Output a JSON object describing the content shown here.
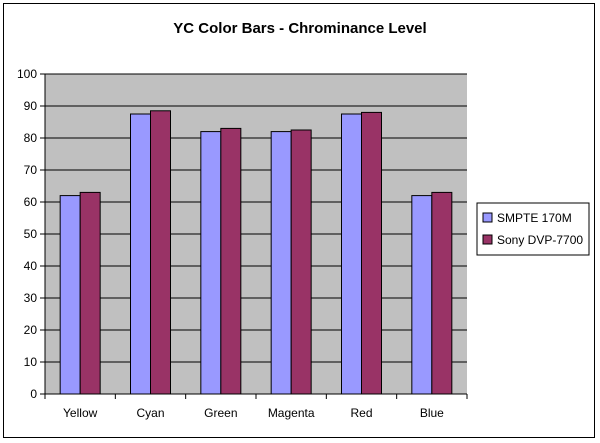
{
  "chart_data": {
    "type": "bar",
    "title": "YC Color Bars - Chrominance Level",
    "xlabel": "",
    "ylabel": "",
    "categories": [
      "Yellow",
      "Cyan",
      "Green",
      "Magenta",
      "Red",
      "Blue"
    ],
    "series": [
      {
        "name": "SMPTE 170M",
        "values": [
          62,
          87.5,
          82,
          82,
          87.5,
          62
        ]
      },
      {
        "name": "Sony DVP-7700",
        "values": [
          63,
          88.5,
          83,
          82.5,
          88,
          63
        ]
      }
    ],
    "ylim": [
      0,
      100
    ],
    "yticks": [
      0,
      10,
      20,
      30,
      40,
      50,
      60,
      70,
      80,
      90,
      100
    ],
    "grid": true,
    "legend_position": "right",
    "colors": {
      "series": [
        "#9999ff",
        "#993366"
      ],
      "plot_background": "#c0c0c0",
      "gridline": "#000000"
    }
  }
}
